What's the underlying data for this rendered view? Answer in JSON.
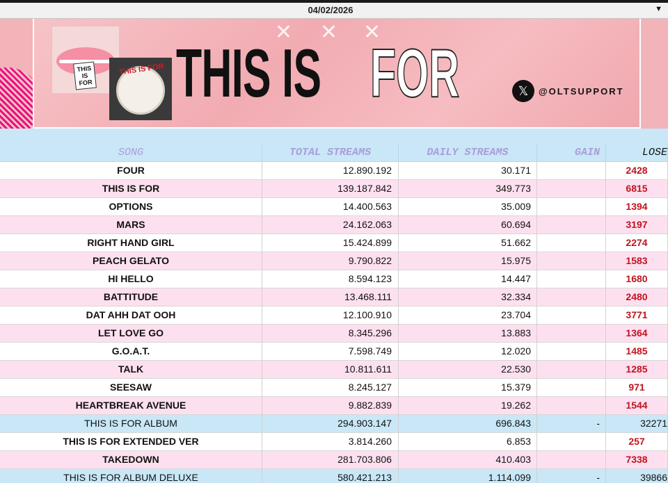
{
  "date": "04/02/2026",
  "banner": {
    "title_black": "THIS IS",
    "title_white": "FOR",
    "handle": "@OLTSUPPORT",
    "photo_tag_text": "THIS IS FOR",
    "cake_text": "THIS IS FOR"
  },
  "table": {
    "headers": [
      "SONG",
      "TOTAL STREAMS",
      "DAILY STREAMS",
      "GAIN",
      "LOSE"
    ],
    "rows": [
      {
        "song": "FOUR",
        "total": "12.890.192",
        "daily": "30.171",
        "gain": "",
        "lose": "2428"
      },
      {
        "song": "THIS IS FOR",
        "total": "139.187.842",
        "daily": "349.773",
        "gain": "",
        "lose": "6815"
      },
      {
        "song": "OPTIONS",
        "total": "14.400.563",
        "daily": "35.009",
        "gain": "",
        "lose": "1394"
      },
      {
        "song": "MARS",
        "total": "24.162.063",
        "daily": "60.694",
        "gain": "",
        "lose": "3197"
      },
      {
        "song": "RIGHT HAND GIRL",
        "total": "15.424.899",
        "daily": "51.662",
        "gain": "",
        "lose": "2274"
      },
      {
        "song": "PEACH GELATO",
        "total": "9.790.822",
        "daily": "15.975",
        "gain": "",
        "lose": "1583"
      },
      {
        "song": "HI HELLO",
        "total": "8.594.123",
        "daily": "14.447",
        "gain": "",
        "lose": "1680"
      },
      {
        "song": "BATTITUDE",
        "total": "13.468.111",
        "daily": "32.334",
        "gain": "",
        "lose": "2480"
      },
      {
        "song": "DAT AHH DAT OOH",
        "total": "12.100.910",
        "daily": "23.704",
        "gain": "",
        "lose": "3771"
      },
      {
        "song": "LET LOVE GO",
        "total": "8.345.296",
        "daily": "13.883",
        "gain": "",
        "lose": "1364"
      },
      {
        "song": "G.O.A.T.",
        "total": "7.598.749",
        "daily": "12.020",
        "gain": "",
        "lose": "1485"
      },
      {
        "song": "TALK",
        "total": "10.811.611",
        "daily": "22.530",
        "gain": "",
        "lose": "1285"
      },
      {
        "song": "SEESAW",
        "total": "8.245.127",
        "daily": "15.379",
        "gain": "",
        "lose": "971"
      },
      {
        "song": "HEARTBREAK AVENUE",
        "total": "9.882.839",
        "daily": "19.262",
        "gain": "",
        "lose": "1544"
      },
      {
        "song": "THIS IS FOR ALBUM",
        "total": "294.903.147",
        "daily": "696.843",
        "gain": "-",
        "lose": "32271"
      },
      {
        "song": "THIS IS FOR EXTENDED VER",
        "total": "3.814.260",
        "daily": "6.853",
        "gain": "",
        "lose": "257"
      },
      {
        "song": "TAKEDOWN",
        "total": "281.703.806",
        "daily": "410.403",
        "gain": "",
        "lose": "7338"
      },
      {
        "song": "THIS IS FOR ALBUM DELUXE",
        "total": "580.421.213",
        "daily": "1.114.099",
        "gain": "-",
        "lose": "39866"
      }
    ]
  },
  "colors": {
    "banner_pink": "#f2b3b9",
    "row_white": "#ffffff",
    "row_pink": "#fde0ef",
    "row_blue": "#c9e7f6",
    "header_text": "#a99ddb",
    "lose_red": "#c0141f"
  }
}
